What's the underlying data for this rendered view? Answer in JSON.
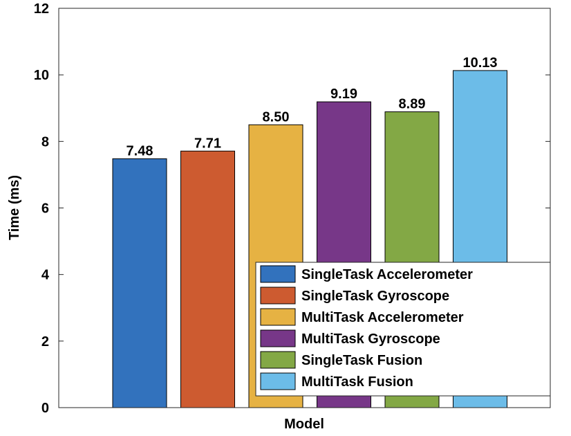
{
  "chart_data": {
    "type": "bar",
    "xlabel": "Model",
    "ylabel": "Time (ms)",
    "ylim": [
      0,
      12
    ],
    "yticks": [
      "0",
      "2",
      "4",
      "6",
      "8",
      "10",
      "12"
    ],
    "grid": false,
    "legend_position": "bottom-right",
    "series": [
      {
        "name": "SingleTask Accelerometer",
        "value": 7.48,
        "label": "7.48",
        "color": "#3272BD"
      },
      {
        "name": "SingleTask Gyroscope",
        "value": 7.71,
        "label": "7.71",
        "color": "#CD5B30"
      },
      {
        "name": "MultiTask Accelerometer",
        "value": 8.5,
        "label": "8.50",
        "color": "#E6B243"
      },
      {
        "name": "MultiTask Gyroscope",
        "value": 9.19,
        "label": "9.19",
        "color": "#773788"
      },
      {
        "name": "SingleTask Fusion",
        "value": 8.89,
        "label": "8.89",
        "color": "#83A845"
      },
      {
        "name": "MultiTask Fusion",
        "value": 10.13,
        "label": "10.13",
        "color": "#6CBCE8"
      }
    ]
  }
}
